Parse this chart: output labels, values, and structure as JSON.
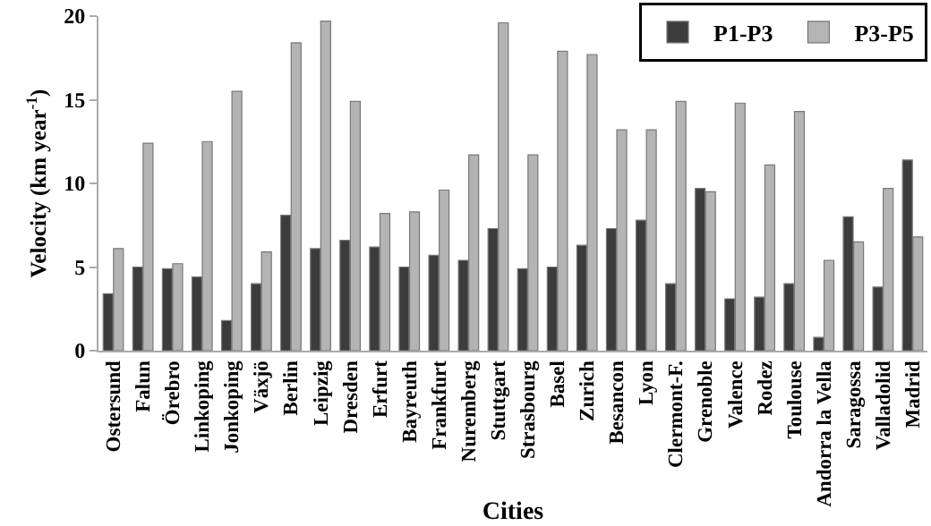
{
  "chart_data": {
    "type": "bar",
    "xlabel": "Cities",
    "ylabel": "Velocity (km year$^{-1}$)",
    "categories": [
      "Ostersund",
      "Falun",
      "Örebro",
      "Linkoping",
      "Jonkoping",
      "Växjö",
      "Berlin",
      "Leipzig",
      "Dresden",
      "Erfurt",
      "Bayreuth",
      "Frankfurt",
      "Nuremberg",
      "Stuttgart",
      "Strasbourg",
      "Basel",
      "Zurich",
      "Besancon",
      "Lyon",
      "Clermont-F.",
      "Grenoble",
      "Valence",
      "Rodez",
      "Toulouse",
      "Andorra la Vella",
      "Saragossa",
      "Valladolid",
      "Madrid"
    ],
    "series": [
      {
        "name": "P1-P3",
        "color": "#3c3c3c",
        "values": [
          3.4,
          5.0,
          4.9,
          4.4,
          1.8,
          4.0,
          8.1,
          6.1,
          6.6,
          6.2,
          5.0,
          5.7,
          5.4,
          7.3,
          4.9,
          5.0,
          6.3,
          7.3,
          7.8,
          4.0,
          9.7,
          3.1,
          3.2,
          4.0,
          0.8,
          8.0,
          3.8,
          11.4
        ]
      },
      {
        "name": "P3-P5",
        "color": "#b4b4b4",
        "values": [
          6.1,
          12.4,
          5.2,
          12.5,
          15.5,
          5.9,
          18.4,
          19.7,
          14.9,
          8.2,
          8.3,
          9.6,
          11.7,
          19.6,
          11.7,
          17.9,
          17.7,
          13.2,
          13.2,
          14.9,
          9.5,
          14.8,
          11.1,
          14.3,
          5.4,
          6.5,
          9.7,
          6.8
        ]
      }
    ],
    "ylim": [
      0,
      20
    ],
    "yticks": [
      0,
      5,
      10,
      15,
      20
    ],
    "grid": false,
    "legend": "top right"
  }
}
